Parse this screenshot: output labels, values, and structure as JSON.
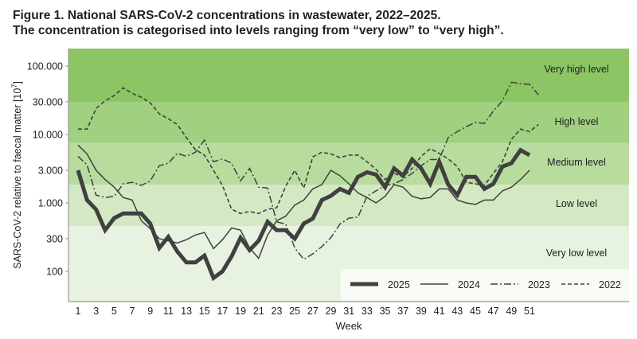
{
  "chart_data": {
    "type": "line",
    "title": "Figure 1. National SARS-CoV-2 concentrations in wastewater, 2022–2025.",
    "subtitle": "The concentration is categorised into levels ranging from “very low” to “very high”.",
    "xlabel": "Week",
    "ylabel": "SARS-CoV-2 relative to faecal matter  [10",
    "ylabel_exponent": "7",
    "ylabel_close": "]",
    "yscale": "log",
    "ylim": [
      36,
      180000
    ],
    "xlim": [
      0,
      54
    ],
    "xticks": [
      1,
      3,
      5,
      7,
      9,
      11,
      13,
      15,
      17,
      19,
      21,
      23,
      25,
      27,
      29,
      31,
      33,
      35,
      37,
      39,
      41,
      43,
      45,
      47,
      49,
      51
    ],
    "yticks": [
      100,
      300,
      1000,
      3000,
      10000,
      30000,
      100000
    ],
    "ytick_labels": [
      "100",
      "300",
      "1.000",
      "3.000",
      "10.000",
      "30.000",
      "100.000"
    ],
    "grid": false,
    "legend_position": "bottom-right",
    "bands": [
      {
        "label": "Very high level",
        "from": 30000,
        "to": 180000,
        "color": "#8cc563"
      },
      {
        "label": "High level",
        "from": 7500,
        "to": 30000,
        "color": "#a0d080"
      },
      {
        "label": "Medium level",
        "from": 1850,
        "to": 7500,
        "color": "#b7dc9e"
      },
      {
        "label": "Low level",
        "from": 460,
        "to": 1850,
        "color": "#d3e8c3"
      },
      {
        "label": "Very low level",
        "from": 36,
        "to": 460,
        "color": "#e7f3e0"
      }
    ],
    "series": [
      {
        "name": "2025",
        "style": "thick",
        "color": "#404040",
        "values": [
          3000,
          1100,
          800,
          400,
          600,
          700,
          700,
          700,
          500,
          220,
          320,
          195,
          135,
          135,
          170,
          80,
          100,
          165,
          310,
          205,
          280,
          530,
          400,
          400,
          300,
          500,
          590,
          1100,
          1270,
          1600,
          1400,
          2400,
          2800,
          2600,
          1700,
          3200,
          2500,
          4300,
          3200,
          1900,
          4000,
          1850,
          1300,
          2400,
          2400,
          1600,
          1900,
          3400,
          3800,
          5900,
          5000
        ]
      },
      {
        "name": "2024",
        "style": "solid",
        "color": "#404040",
        "values": [
          7000,
          5200,
          3000,
          2200,
          1700,
          1200,
          1100,
          550,
          420,
          300,
          280,
          260,
          290,
          340,
          370,
          215,
          290,
          430,
          400,
          220,
          155,
          340,
          550,
          640,
          930,
          1100,
          1600,
          1850,
          3000,
          2500,
          1900,
          1400,
          1200,
          1000,
          1250,
          1850,
          1700,
          1250,
          1150,
          1200,
          1600,
          1600,
          1100,
          1000,
          950,
          1100,
          1100,
          1500,
          1700,
          2200,
          3000
        ]
      },
      {
        "name": "2023",
        "style": "dashdot",
        "color": "#404040",
        "values": [
          4800,
          3600,
          1300,
          1200,
          1250,
          1900,
          2000,
          1800,
          2100,
          3500,
          3800,
          5300,
          4800,
          5500,
          8300,
          4000,
          4400,
          3800,
          2100,
          3200,
          1700,
          1650,
          530,
          490,
          220,
          150,
          180,
          230,
          310,
          490,
          600,
          620,
          1250,
          1500,
          1800,
          1900,
          2200,
          2700,
          3500,
          4300,
          4300,
          9000,
          11000,
          13000,
          15000,
          14500,
          22000,
          31000,
          58000,
          55000,
          54000,
          38000
        ]
      },
      {
        "name": "2022",
        "style": "dashed",
        "color": "#404040",
        "values": [
          12000,
          12000,
          24000,
          31000,
          37000,
          48000,
          40000,
          35000,
          29000,
          20000,
          17000,
          14000,
          9000,
          6000,
          5000,
          3000,
          1800,
          810,
          700,
          750,
          700,
          810,
          850,
          1750,
          3000,
          1650,
          4700,
          5500,
          5200,
          4600,
          5000,
          5000,
          4000,
          3100,
          2200,
          2700,
          2400,
          3200,
          4800,
          6200,
          5300,
          4400,
          3400,
          2000,
          1900,
          1800,
          2700,
          4000,
          8500,
          12000,
          11000,
          14000
        ]
      }
    ]
  }
}
